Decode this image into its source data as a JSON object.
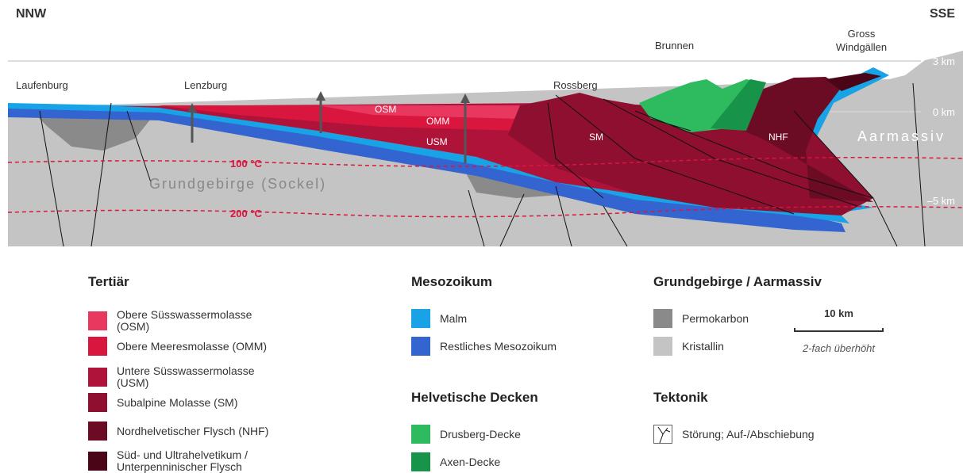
{
  "header": {
    "left": "NNW",
    "right": "SSE"
  },
  "places": [
    "Laufenburg",
    "Lenzburg",
    "Rossberg",
    "Brunnen",
    "Gross Windgällen"
  ],
  "depth_labels": [
    "3 km",
    "0 km",
    "–5 km"
  ],
  "isotherms": [
    "100 °C",
    "200 °C"
  ],
  "units": [
    "OSM",
    "OMM",
    "USM",
    "SM",
    "NHF",
    "Aarmassiv",
    "Grundgebirge (Sockel)"
  ],
  "legend": [
    {
      "title": "Tertiär",
      "items": [
        {
          "label": "Obere Süsswassermolasse (OSM)",
          "color": "#e8385f"
        },
        {
          "label": "Obere Meeresmolasse (OMM)",
          "color": "#d9163e"
        },
        {
          "label": "Untere Süsswassermolasse (USM)",
          "color": "#b0133a"
        },
        {
          "label": "Subalpine Molasse (SM)",
          "color": "#8e0f2f"
        },
        {
          "label": "Nordhelvetischer Flysch (NHF)",
          "color": "#6c0b24"
        },
        {
          "label": "Süd- und Ultrahelvetikum / Unterpenninischer Flysch",
          "color": "#4a0616"
        }
      ]
    },
    {
      "title": "Mesozoikum",
      "items": [
        {
          "label": "Malm",
          "color": "#17a3e6"
        },
        {
          "label": "Restliches Mesozoikum",
          "color": "#3464cf"
        }
      ]
    },
    {
      "title": "Helvetische Decken",
      "items": [
        {
          "label": "Drusberg-Decke",
          "color": "#2ebb5f"
        },
        {
          "label": "Axen-Decke",
          "color": "#17934a"
        }
      ]
    },
    {
      "title": "Grundgebirge / Aarmassiv",
      "items": [
        {
          "label": "Permokarbon",
          "color": "#8a8a8a"
        },
        {
          "label": "Kristallin",
          "color": "#c4c4c4"
        }
      ]
    },
    {
      "title": "Tektonik",
      "items": [
        {
          "label": "Störung; Auf-/Abschiebung"
        }
      ]
    }
  ],
  "scale": {
    "label": "10 km",
    "note": "2-fach überhöht"
  }
}
